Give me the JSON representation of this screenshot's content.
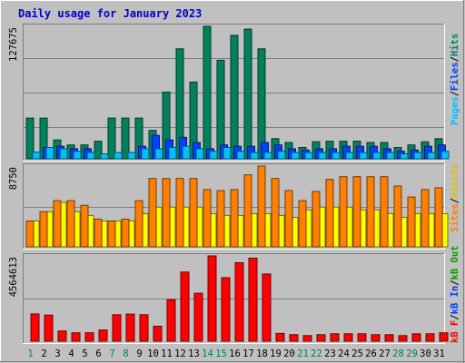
{
  "title": "Daily usage for January 2023",
  "colors": {
    "background": "#C0C0C0",
    "title": "#0000CC",
    "hits": "#00805C",
    "files": "#0040FF",
    "pages": "#00C0FF",
    "visits": "#FFFF00",
    "sites": "#FF8000",
    "kb": "#FF0000",
    "weekend_day_label": "#00805C",
    "weekday_label": "#000000"
  },
  "legend_top": {
    "pages": "Pages",
    "sep1": "/",
    "files": "Files",
    "sep2": "/",
    "hits": "Hits"
  },
  "legend_mid": {
    "visits": "Visits",
    "sep": "/",
    "sites": "Sites"
  },
  "legend_bottom": {
    "kb_f": "kB F",
    "sep1": "/",
    "kb_in": "kB In",
    "sep2": "/",
    "kb_out": "kB Out"
  },
  "chart_data": [
    {
      "type": "bar",
      "panel": "top",
      "max_label": "127675",
      "ylim": [
        0,
        127675
      ],
      "categories": [
        "1",
        "2",
        "3",
        "4",
        "5",
        "6",
        "7",
        "8",
        "9",
        "10",
        "11",
        "12",
        "13",
        "14",
        "15",
        "16",
        "17",
        "18",
        "19",
        "20",
        "21",
        "22",
        "23",
        "24",
        "25",
        "26",
        "27",
        "28",
        "29",
        "30",
        "31"
      ],
      "weekend_days": [
        "1",
        "7",
        "8",
        "14",
        "15",
        "21",
        "22",
        "28",
        "29"
      ],
      "series": [
        {
          "name": "Hits",
          "color": "#00805C",
          "values": [
            39300,
            39300,
            18200,
            13400,
            13400,
            17000,
            39300,
            39300,
            39300,
            27400,
            64300,
            106000,
            74000,
            127675,
            95000,
            119000,
            125000,
            106000,
            19400,
            15700,
            10900,
            16400,
            17000,
            17000,
            17000,
            15700,
            15700,
            10900,
            13400,
            16400,
            19400
          ]
        },
        {
          "name": "Files",
          "color": "#0040FF",
          "values": [
            0,
            10900,
            12100,
            9700,
            9700,
            0,
            0,
            0,
            12100,
            22600,
            18200,
            20600,
            15700,
            9700,
            13400,
            12100,
            12100,
            15700,
            13400,
            9700,
            8500,
            9700,
            9700,
            12100,
            12100,
            12100,
            9700,
            7300,
            8500,
            12100,
            13400
          ]
        },
        {
          "name": "Pages",
          "color": "#00C0FF",
          "values": [
            6500,
            10900,
            9700,
            7300,
            6100,
            4800,
            6100,
            6100,
            9700,
            9700,
            10900,
            12100,
            9700,
            7300,
            10900,
            7300,
            6100,
            6100,
            7300,
            6100,
            6100,
            6100,
            6100,
            6100,
            6100,
            6100,
            6100,
            4800,
            6100,
            6100,
            7300
          ]
        }
      ]
    },
    {
      "type": "bar",
      "panel": "middle",
      "max_label": "8750",
      "ylim": [
        0,
        8750
      ],
      "categories": [
        "1",
        "2",
        "3",
        "4",
        "5",
        "6",
        "7",
        "8",
        "9",
        "10",
        "11",
        "12",
        "13",
        "14",
        "15",
        "16",
        "17",
        "18",
        "19",
        "20",
        "21",
        "22",
        "23",
        "24",
        "25",
        "26",
        "27",
        "28",
        "29",
        "30",
        "31"
      ],
      "series": [
        {
          "name": "Visits",
          "color": "#FFFF00",
          "values": [
            2800,
            3800,
            4800,
            3800,
            3400,
            2800,
            2800,
            2800,
            3600,
            4300,
            4300,
            4300,
            4300,
            3600,
            3400,
            3400,
            3600,
            3600,
            3400,
            3200,
            4000,
            4300,
            4300,
            4300,
            4000,
            4000,
            3600,
            3200,
            3600,
            3600,
            3600
          ]
        },
        {
          "name": "Sites",
          "color": "#FF8000",
          "values": [
            2800,
            3800,
            5000,
            5000,
            4500,
            3000,
            2800,
            3000,
            5000,
            7400,
            7400,
            7400,
            7400,
            6200,
            6100,
            6200,
            7800,
            8750,
            7400,
            6100,
            5000,
            6000,
            7300,
            7600,
            7600,
            7600,
            7600,
            6600,
            5400,
            6200,
            6400
          ]
        }
      ]
    },
    {
      "type": "bar",
      "panel": "bottom",
      "max_label": "4564613",
      "ylim": [
        0,
        4564613
      ],
      "categories": [
        "1",
        "2",
        "3",
        "4",
        "5",
        "6",
        "7",
        "8",
        "9",
        "10",
        "11",
        "12",
        "13",
        "14",
        "15",
        "16",
        "17",
        "18",
        "19",
        "20",
        "21",
        "22",
        "23",
        "24",
        "25",
        "26",
        "27",
        "28",
        "29",
        "30",
        "31"
      ],
      "series": [
        {
          "name": "kB F",
          "color": "#FF0000",
          "values": [
            1460000,
            1400000,
            550000,
            450000,
            450000,
            600000,
            1420000,
            1450000,
            1420000,
            800000,
            2220000,
            3700000,
            2570000,
            4564613,
            3400000,
            4200000,
            4450000,
            3600000,
            420000,
            350000,
            300000,
            350000,
            400000,
            400000,
            400000,
            350000,
            350000,
            300000,
            400000,
            400000,
            450000
          ]
        }
      ]
    }
  ]
}
